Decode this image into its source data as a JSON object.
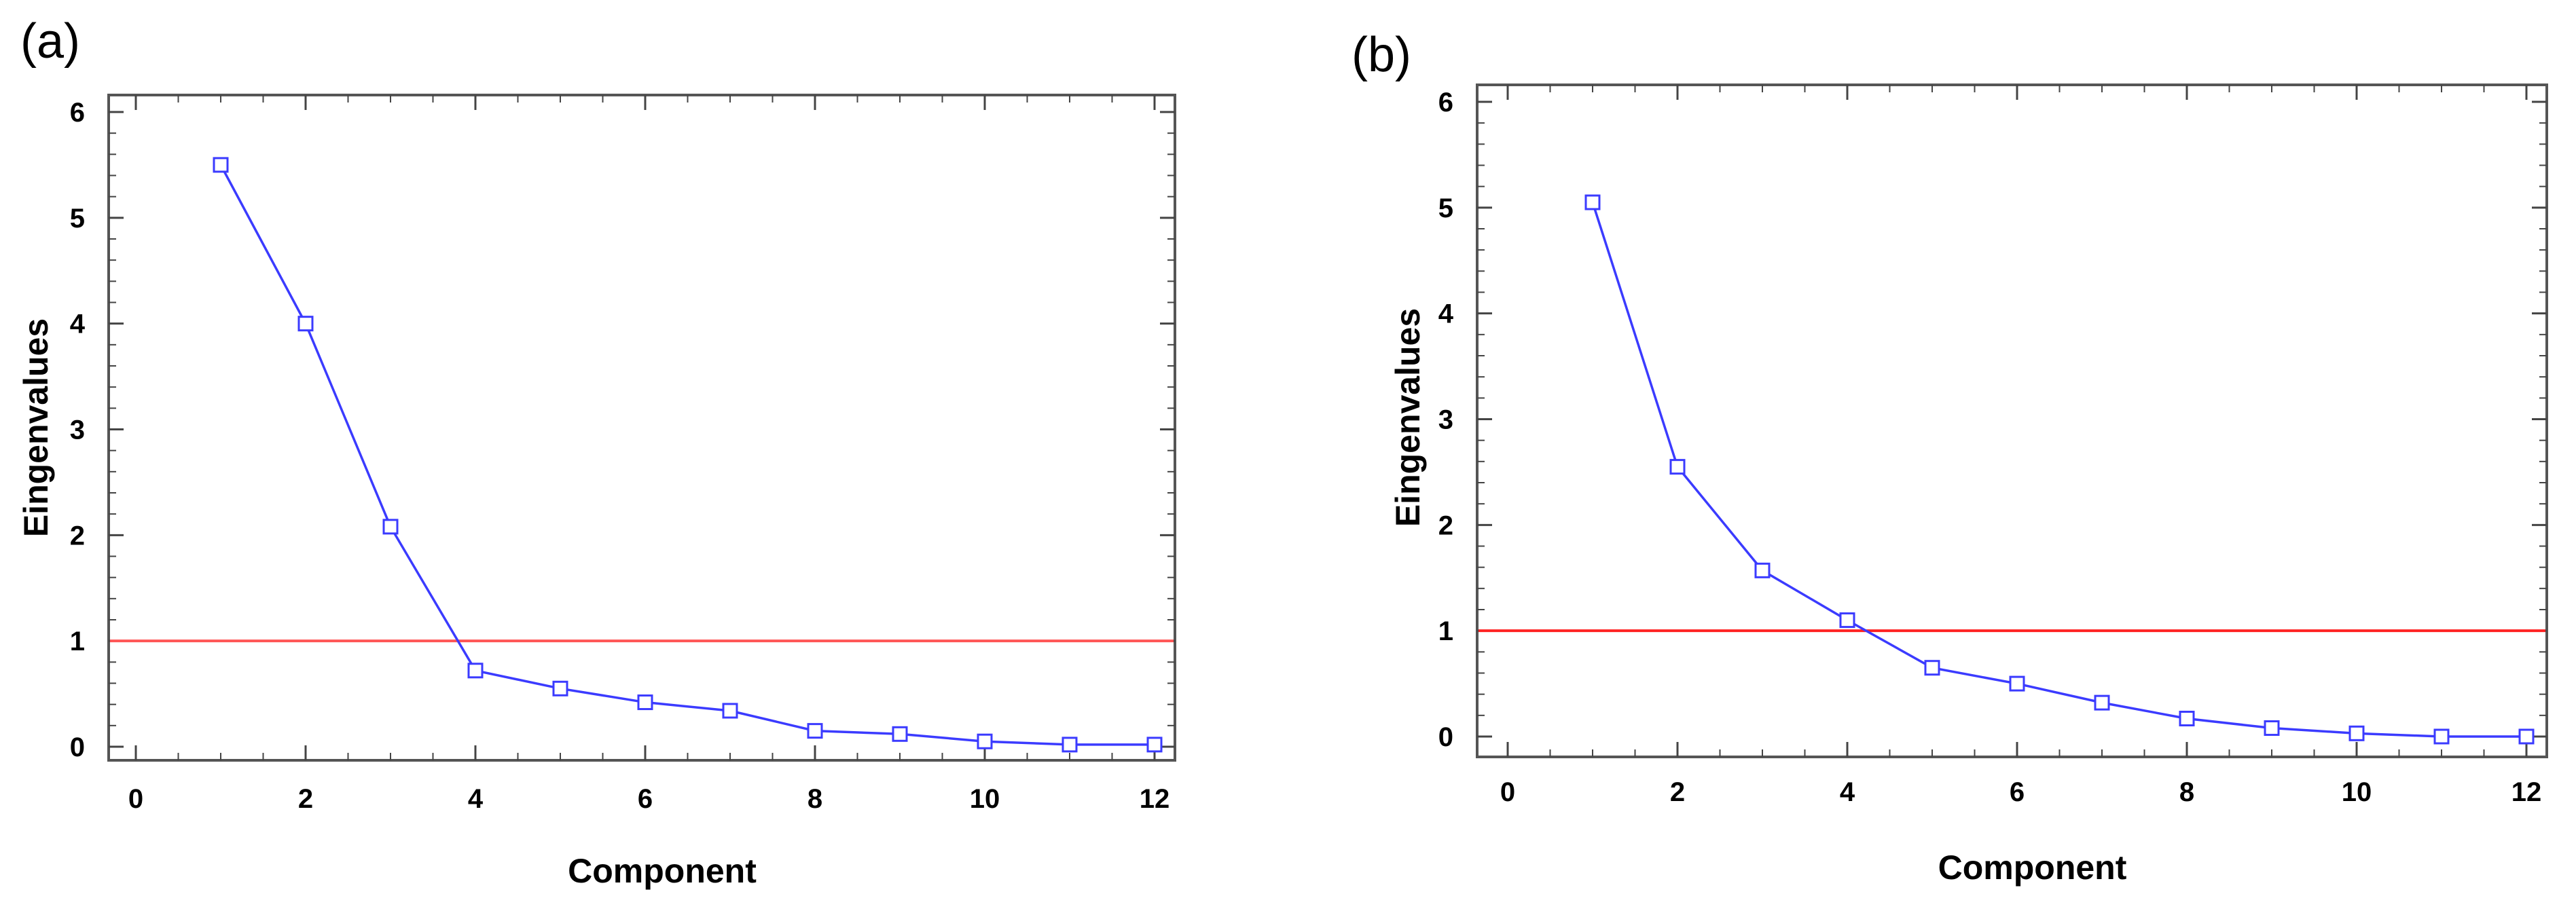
{
  "panels": [
    {
      "label": "(a)"
    },
    {
      "label": "(b)"
    }
  ],
  "chart_data": [
    {
      "type": "line",
      "panel": "(a)",
      "xlabel": "Component",
      "ylabel": "Eingenvalues",
      "xlim": [
        0,
        12
      ],
      "ylim": [
        0,
        6
      ],
      "xticks": [
        0,
        2,
        4,
        6,
        8,
        10,
        12
      ],
      "yticks": [
        0,
        1,
        2,
        3,
        4,
        5,
        6
      ],
      "series": [
        {
          "name": "eigenvalues",
          "color": "#3b3bff",
          "x": [
            1,
            2,
            3,
            4,
            5,
            6,
            7,
            8,
            9,
            10,
            11,
            12
          ],
          "y": [
            5.5,
            4.0,
            2.08,
            0.72,
            0.55,
            0.42,
            0.34,
            0.15,
            0.12,
            0.05,
            0.02,
            0.02
          ]
        }
      ],
      "reference_line": {
        "y": 1,
        "color": "#ff5555"
      }
    },
    {
      "type": "line",
      "panel": "(b)",
      "xlabel": "Component",
      "ylabel": "Eingenvalues",
      "xlim": [
        0,
        12
      ],
      "ylim": [
        0,
        6
      ],
      "xticks": [
        0,
        2,
        4,
        6,
        8,
        10,
        12
      ],
      "yticks": [
        0,
        1,
        2,
        3,
        4,
        5,
        6
      ],
      "series": [
        {
          "name": "eigenvalues",
          "color": "#3b3bff",
          "x": [
            1,
            2,
            3,
            4,
            5,
            6,
            7,
            8,
            9,
            10,
            11,
            12
          ],
          "y": [
            5.05,
            2.55,
            1.57,
            1.1,
            0.65,
            0.5,
            0.32,
            0.17,
            0.08,
            0.03,
            0.0,
            0.0
          ]
        }
      ],
      "reference_line": {
        "y": 1,
        "color": "#ff2222"
      }
    }
  ]
}
